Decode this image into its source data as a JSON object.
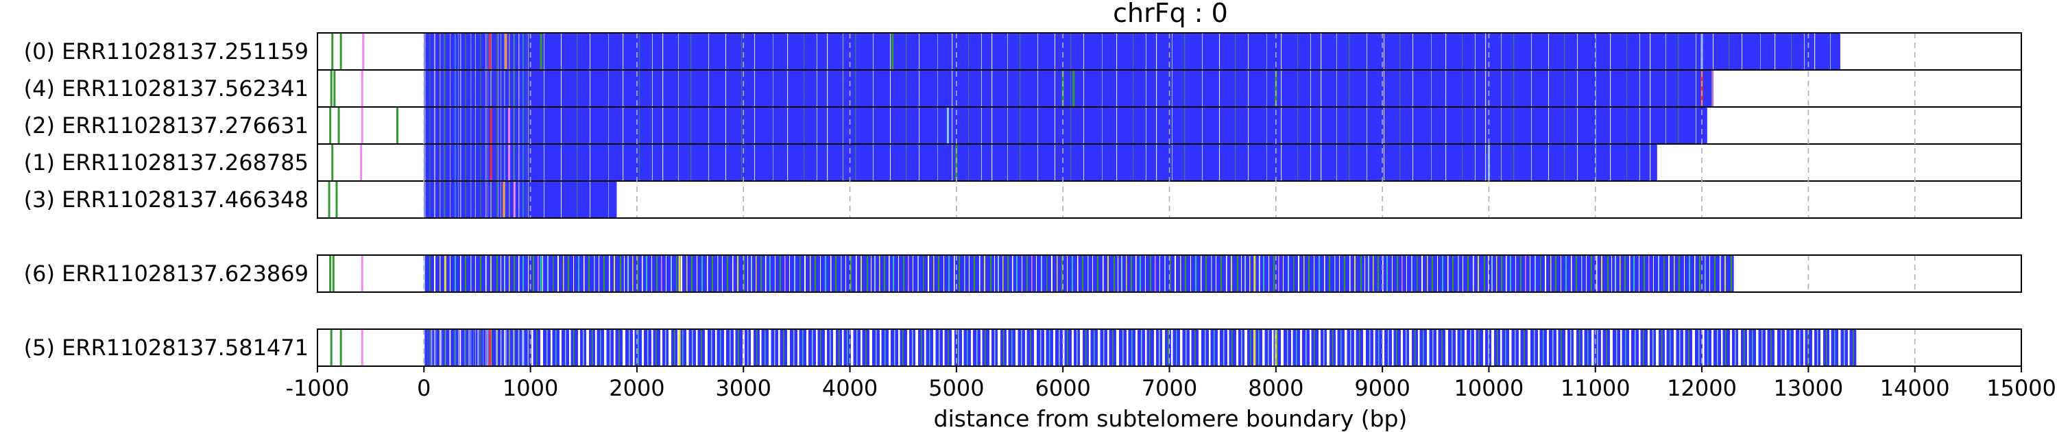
{
  "chart_data": {
    "type": "track",
    "title": "chrFq : 0",
    "xlabel": "distance from subtelomere boundary (bp)",
    "xlim": [
      -1000,
      15000
    ],
    "xticks": [
      -1000,
      0,
      1000,
      2000,
      3000,
      4000,
      5000,
      6000,
      7000,
      8000,
      9000,
      10000,
      11000,
      12000,
      13000,
      14000,
      15000
    ],
    "xtick_labels": [
      "-1000",
      "0",
      "1000",
      "2000",
      "3000",
      "4000",
      "5000",
      "6000",
      "7000",
      "8000",
      "9000",
      "10000",
      "11000",
      "12000",
      "13000",
      "14000",
      "15000"
    ],
    "grid": "vertical dashed",
    "colors": {
      "repeat": "#3333ff",
      "variant_green": "#339933",
      "variant_lightblue": "#8ec8f0",
      "variant_cyan": "#33bbbb",
      "variant_yellow": "#dddd33",
      "variant_pink": "#ee88ee",
      "variant_red": "#ee3333",
      "variant_orange": "#ff9933",
      "variant_purple": "#aa77cc",
      "background": "#ffffff"
    },
    "groups": [
      {
        "reads": [
          {
            "label": "(0) ERR11028137.251159",
            "end": 13300,
            "marks": [
              [
                -860,
                "variant_green"
              ],
              [
                -780,
                "variant_green"
              ],
              [
                -570,
                "variant_pink"
              ],
              [
                620,
                "variant_red"
              ],
              [
                770,
                "variant_orange"
              ],
              [
                1100,
                "variant_green"
              ],
              [
                4400,
                "variant_green"
              ],
              [
                12000,
                "variant_lightblue"
              ]
            ]
          },
          {
            "label": "(4) ERR11028137.562341",
            "end": 12100,
            "marks": [
              [
                -870,
                "variant_green"
              ],
              [
                -840,
                "variant_green"
              ],
              [
                -580,
                "variant_pink"
              ],
              [
                6000,
                "variant_green"
              ],
              [
                6100,
                "variant_green"
              ],
              [
                8000,
                "variant_green"
              ],
              [
                12000,
                "variant_red"
              ],
              [
                12100,
                "variant_purple"
              ]
            ]
          },
          {
            "label": "(2) ERR11028137.276631",
            "end": 12050,
            "marks": [
              [
                -880,
                "variant_green"
              ],
              [
                -800,
                "variant_green"
              ],
              [
                -580,
                "variant_pink"
              ],
              [
                -250,
                "variant_green"
              ],
              [
                630,
                "variant_red"
              ],
              [
                800,
                "variant_pink"
              ],
              [
                4920,
                "variant_lightblue"
              ]
            ]
          },
          {
            "label": "(1) ERR11028137.268785",
            "end": 11580,
            "marks": [
              [
                -860,
                "variant_green"
              ],
              [
                -590,
                "variant_pink"
              ],
              [
                630,
                "variant_red"
              ],
              [
                800,
                "variant_pink"
              ],
              [
                5000,
                "variant_green"
              ],
              [
                10000,
                "variant_lightblue"
              ]
            ]
          },
          {
            "label": "(3) ERR11028137.466348",
            "end": 1810,
            "marks": [
              [
                -890,
                "variant_green"
              ],
              [
                -820,
                "variant_green"
              ],
              [
                750,
                "variant_orange"
              ],
              [
                850,
                "variant_pink"
              ]
            ]
          }
        ]
      },
      {
        "reads": [
          {
            "label": "(6) ERR11028137.623869",
            "end": 12300,
            "marks": [
              [
                -880,
                "variant_green"
              ],
              [
                -850,
                "variant_green"
              ],
              [
                -580,
                "variant_pink"
              ],
              [
                200,
                "variant_yellow"
              ],
              [
                1100,
                "variant_cyan"
              ],
              [
                2400,
                "variant_yellow"
              ],
              [
                7800,
                "variant_yellow"
              ]
            ]
          }
        ]
      },
      {
        "reads": [
          {
            "label": "(5) ERR11028137.581471",
            "end": 13450,
            "marks": [
              [
                -870,
                "variant_green"
              ],
              [
                -780,
                "variant_green"
              ],
              [
                -580,
                "variant_pink"
              ],
              [
                620,
                "variant_red"
              ],
              [
                2400,
                "variant_yellow"
              ],
              [
                7800,
                "variant_yellow"
              ],
              [
                8000,
                "variant_yellow"
              ]
            ]
          }
        ]
      }
    ]
  }
}
